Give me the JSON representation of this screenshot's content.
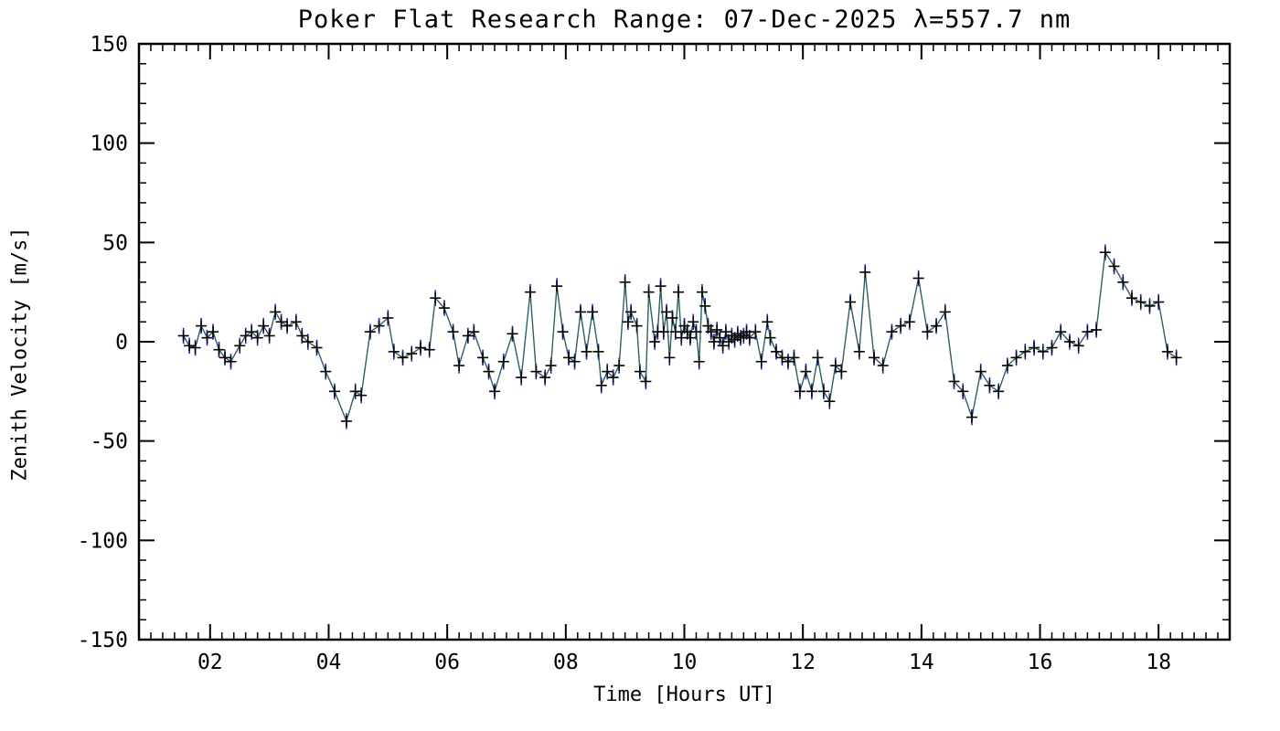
{
  "page": {
    "background": "#ffffff"
  },
  "chart_data": {
    "type": "line",
    "title": "Poker Flat Research Range: 07-Dec-2025 λ=557.7 nm",
    "xlabel": "Time [Hours UT]",
    "ylabel": "Zenith Velocity [m/s]",
    "xlim": [
      0.8,
      19.2
    ],
    "ylim": [
      -150,
      150
    ],
    "grid": false,
    "legend": null,
    "marker": "plus",
    "xticks": {
      "major": [
        2,
        4,
        6,
        8,
        10,
        12,
        14,
        16,
        18
      ],
      "labels": [
        "02",
        "04",
        "06",
        "08",
        "10",
        "12",
        "14",
        "16",
        "18"
      ],
      "minor_step": 0.2
    },
    "yticks": {
      "major": [
        -150,
        -100,
        -50,
        0,
        50,
        100,
        150
      ],
      "labels": [
        "-150",
        "-100",
        "-50",
        "0",
        "50",
        "100",
        "150"
      ],
      "minor_step": 10
    },
    "colors": {
      "line": "#2f5f5f",
      "marker": "#000000",
      "error_bar": "#2222bb",
      "axis": "#000000",
      "background": "#ffffff"
    },
    "series": [
      {
        "name": "zenith-velocity",
        "yerr": 4,
        "x": [
          1.55,
          1.65,
          1.75,
          1.85,
          1.95,
          2.05,
          2.15,
          2.25,
          2.35,
          2.5,
          2.6,
          2.7,
          2.8,
          2.9,
          3.0,
          3.1,
          3.2,
          3.3,
          3.45,
          3.55,
          3.65,
          3.8,
          3.95,
          4.1,
          4.3,
          4.45,
          4.55,
          4.7,
          4.85,
          5.0,
          5.1,
          5.25,
          5.4,
          5.55,
          5.7,
          5.8,
          5.95,
          6.1,
          6.2,
          6.35,
          6.45,
          6.6,
          6.7,
          6.8,
          6.95,
          7.1,
          7.25,
          7.4,
          7.5,
          7.65,
          7.75,
          7.85,
          7.95,
          8.05,
          8.15,
          8.25,
          8.35,
          8.45,
          8.55,
          8.6,
          8.7,
          8.8,
          8.9,
          9.0,
          9.05,
          9.1,
          9.2,
          9.25,
          9.35,
          9.4,
          9.5,
          9.55,
          9.6,
          9.65,
          9.7,
          9.75,
          9.8,
          9.85,
          9.9,
          9.95,
          10.0,
          10.05,
          10.1,
          10.15,
          10.2,
          10.25,
          10.3,
          10.35,
          10.4,
          10.45,
          10.5,
          10.55,
          10.6,
          10.65,
          10.7,
          10.75,
          10.8,
          10.85,
          10.9,
          10.95,
          11.0,
          11.05,
          11.1,
          11.2,
          11.3,
          11.4,
          11.45,
          11.55,
          11.65,
          11.75,
          11.85,
          11.95,
          12.05,
          12.15,
          12.25,
          12.35,
          12.45,
          12.55,
          12.65,
          12.8,
          12.95,
          13.05,
          13.2,
          13.35,
          13.5,
          13.65,
          13.8,
          13.95,
          14.1,
          14.25,
          14.4,
          14.55,
          14.7,
          14.85,
          15.0,
          15.15,
          15.3,
          15.45,
          15.6,
          15.75,
          15.9,
          16.05,
          16.2,
          16.35,
          16.5,
          16.65,
          16.8,
          16.95,
          17.1,
          17.25,
          17.4,
          17.55,
          17.7,
          17.85,
          18.0,
          18.15,
          18.3
        ],
        "y": [
          3,
          -2,
          -3,
          8,
          2,
          5,
          -4,
          -8,
          -10,
          -2,
          3,
          5,
          2,
          8,
          3,
          15,
          10,
          8,
          10,
          3,
          0,
          -3,
          -15,
          -25,
          -40,
          -25,
          -27,
          5,
          8,
          12,
          -5,
          -8,
          -6,
          -3,
          -4,
          22,
          17,
          5,
          -12,
          3,
          5,
          -8,
          -15,
          -25,
          -10,
          4,
          -18,
          25,
          -15,
          -18,
          -12,
          28,
          5,
          -8,
          -10,
          15,
          -5,
          15,
          -5,
          -22,
          -15,
          -18,
          -12,
          30,
          10,
          15,
          8,
          -15,
          -20,
          25,
          0,
          5,
          28,
          5,
          15,
          -8,
          12,
          5,
          25,
          2,
          8,
          5,
          2,
          10,
          5,
          -10,
          25,
          18,
          8,
          5,
          0,
          6,
          2,
          -2,
          5,
          0,
          3,
          1,
          4,
          2,
          3,
          5,
          2,
          5,
          -10,
          10,
          2,
          -5,
          -8,
          -10,
          -8,
          -25,
          -15,
          -25,
          -8,
          -25,
          -30,
          -12,
          -15,
          20,
          -5,
          35,
          -8,
          -12,
          5,
          8,
          10,
          32,
          5,
          8,
          15,
          -20,
          -25,
          -38,
          -15,
          -22,
          -25,
          -12,
          -8,
          -5,
          -3,
          -5,
          -3,
          5,
          0,
          -2,
          5,
          6,
          45,
          38,
          30,
          22,
          20,
          18,
          20,
          -5,
          -8
        ]
      }
    ]
  }
}
